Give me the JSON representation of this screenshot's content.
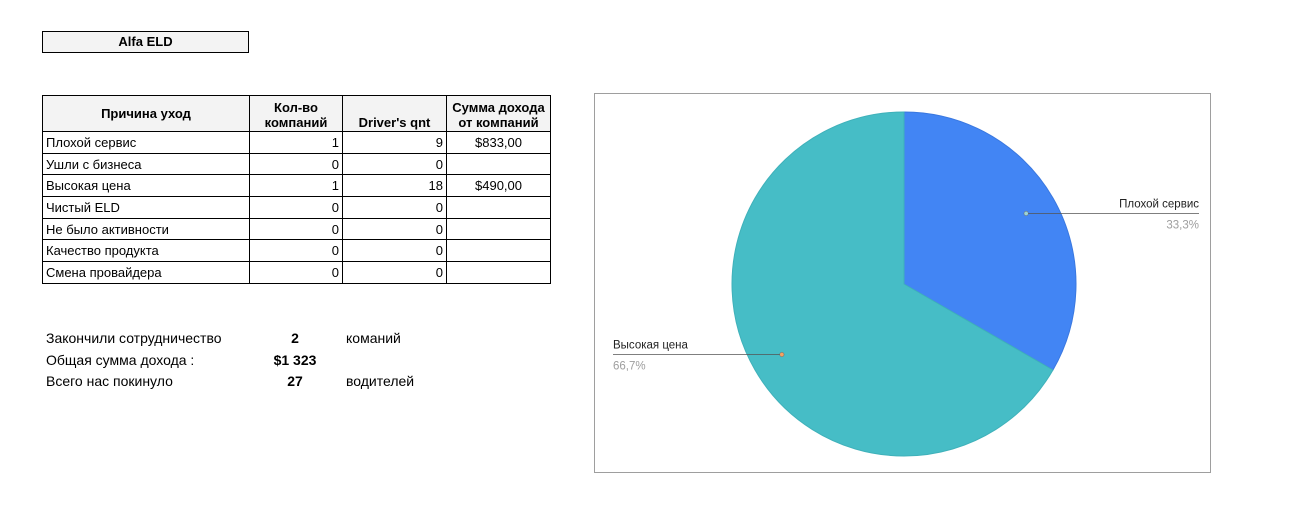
{
  "title": "Alfa ELD",
  "table": {
    "headers": [
      "Причина уход",
      "Кол-во компаний",
      "Driver's qnt",
      "Сумма дохода от компаний"
    ],
    "rows": [
      {
        "reason": "Плохой сервис",
        "companies": "1",
        "drivers": "9",
        "revenue": "$833,00"
      },
      {
        "reason": "Ушли с бизнеса",
        "companies": "0",
        "drivers": "0",
        "revenue": ""
      },
      {
        "reason": "Высокая цена",
        "companies": "1",
        "drivers": "18",
        "revenue": "$490,00"
      },
      {
        "reason": "Чистый ELD",
        "companies": "0",
        "drivers": "0",
        "revenue": ""
      },
      {
        "reason": "Не было активности",
        "companies": "0",
        "drivers": "0",
        "revenue": ""
      },
      {
        "reason": "Качество продукта",
        "companies": "0",
        "drivers": "0",
        "revenue": ""
      },
      {
        "reason": "Смена провайдера",
        "companies": "0",
        "drivers": "0",
        "revenue": ""
      }
    ]
  },
  "summary": [
    {
      "label": "Закончили сотрудничество",
      "value": "2",
      "unit": "команий"
    },
    {
      "label": "Общая сумма дохода :",
      "value": "$1 323",
      "unit": ""
    },
    {
      "label": "Всего нас покинуло",
      "value": "27",
      "unit": "водителей"
    }
  ],
  "chart_data": {
    "type": "pie",
    "title": "",
    "slices": [
      {
        "label": "Плохой сервис",
        "value": 1,
        "percent_label": "33,3%",
        "color": "#4285f4",
        "stroke": "#3a78e0"
      },
      {
        "label": "Высокая цена",
        "value": 2,
        "percent_label": "66,7%",
        "color": "#46bdc6",
        "stroke": "#3fb1ba"
      }
    ],
    "legend": "none"
  }
}
